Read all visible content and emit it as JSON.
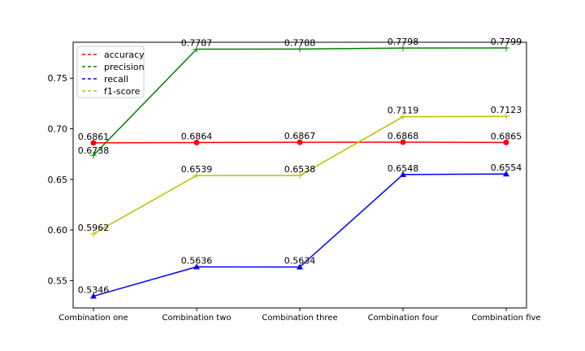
{
  "chart_data": {
    "type": "line",
    "categories": [
      "Combination one",
      "Combination two",
      "Combination three",
      "Combination four",
      "Combination five"
    ],
    "ylim": [
      0.523,
      0.7855
    ],
    "yticks": [
      0.55,
      0.6,
      0.65,
      0.7,
      0.75
    ],
    "ytick_labels": [
      "0.55",
      "0.60",
      "0.65",
      "0.70",
      "0.75"
    ],
    "legend_position": "top-left",
    "grid": false,
    "series": [
      {
        "name": "accuracy",
        "color": "#ff0000",
        "marker": "circle",
        "values": [
          0.6861,
          0.6864,
          0.6867,
          0.6868,
          0.6865
        ],
        "labels": [
          "0.6861",
          "0.6864",
          "0.6867",
          "0.6868",
          "0.6865"
        ]
      },
      {
        "name": "precision",
        "color": "#008000",
        "marker": "plus",
        "values": [
          0.6738,
          0.7787,
          0.7788,
          0.7798,
          0.7799
        ],
        "labels": [
          "0.6738",
          "0.7787",
          "0.7788",
          "0.7798",
          "0.7799"
        ]
      },
      {
        "name": "recall",
        "color": "#0000ff",
        "marker": "triangle",
        "values": [
          0.5346,
          0.5636,
          0.5634,
          0.6548,
          0.6554
        ],
        "labels": [
          "0.5346",
          "0.5636",
          "0.5634",
          "0.6548",
          "0.6554"
        ]
      },
      {
        "name": "f1-score",
        "color": "#bfbf00",
        "marker": "plus",
        "values": [
          0.5962,
          0.6539,
          0.6538,
          0.7119,
          0.7123
        ],
        "labels": [
          "0.5962",
          "0.6539",
          "0.6538",
          "0.7119",
          "0.7123"
        ]
      }
    ]
  }
}
